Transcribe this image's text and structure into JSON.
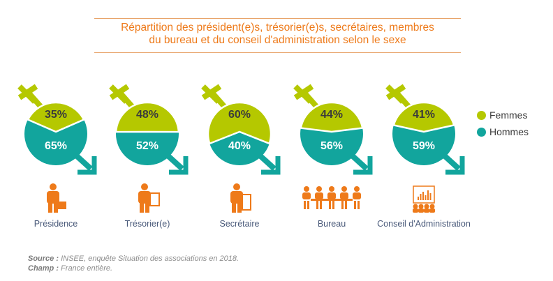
{
  "title_line1": "Répartition des président(e)s, trésorier(e)s, secrétaires, membres",
  "title_line2": "du bureau et du conseil d'administration selon le sexe",
  "chart_data": {
    "type": "pie",
    "title": "Répartition des président(e)s, trésorier(e)s, secrétaires, membres du bureau et du conseil d'administration selon le sexe",
    "categories": [
      "Présidence",
      "Trésorier(e)",
      "Secrétaire",
      "Bureau",
      "Conseil d'Administration"
    ],
    "series": [
      {
        "name": "Femmes",
        "values": [
          35,
          48,
          60,
          44,
          41
        ]
      },
      {
        "name": "Hommes",
        "values": [
          65,
          52,
          40,
          56,
          59
        ]
      }
    ],
    "value_labels": {
      "Femmes": [
        "35%",
        "48%",
        "60%",
        "44%",
        "41%"
      ],
      "Hommes": [
        "65%",
        "52%",
        "40%",
        "56%",
        "59%"
      ]
    },
    "colors": {
      "Femmes": "#b5c800",
      "Hommes": "#12a59d",
      "icons": "#ee7a1a"
    },
    "legend_placement": "right"
  },
  "legend": [
    {
      "label": "Femmes"
    },
    {
      "label": "Hommes"
    }
  ],
  "icons": [
    "person-briefcase-icon",
    "person-calculator-icon",
    "person-document-icon",
    "meeting-table-icon",
    "presentation-audience-icon"
  ],
  "source": {
    "label": "Source :",
    "text": " INSEE, enquête Situation des associations en 2018."
  },
  "champ": {
    "label": "Champ :",
    "text": " France entière."
  }
}
